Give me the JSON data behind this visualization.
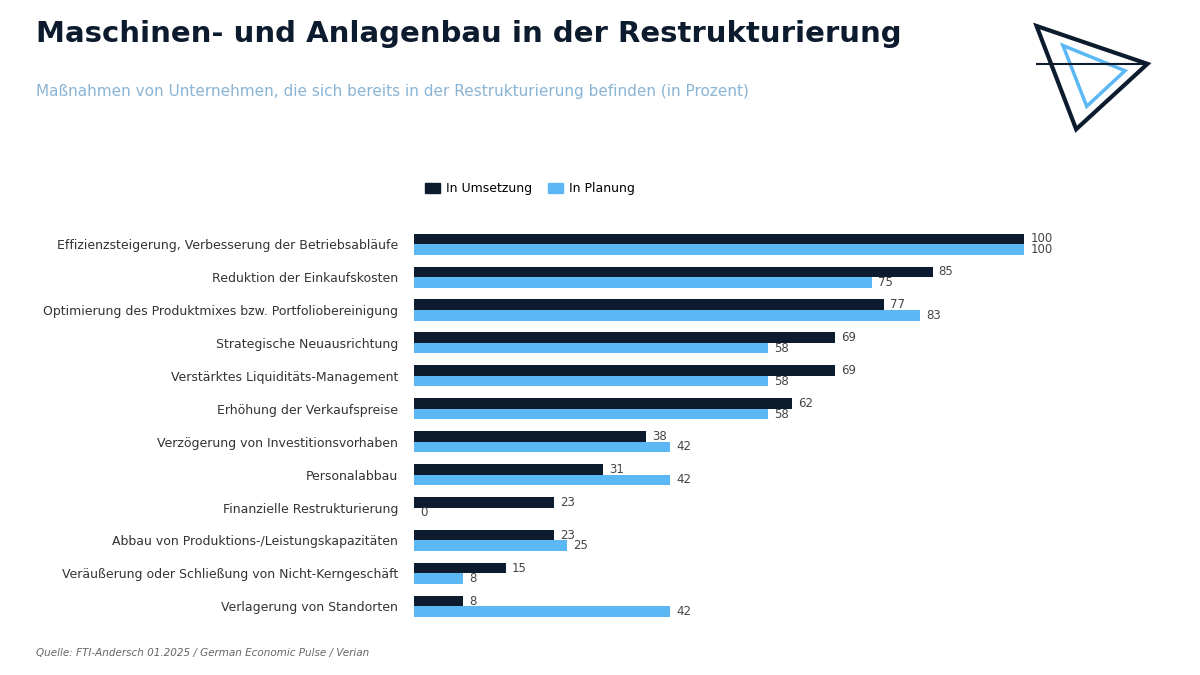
{
  "title": "Maschinen- und Anlagenbau in der Restrukturierung",
  "subtitle": "Maßnahmen von Unternehmen, die sich bereits in der Restrukturierung befinden (in Prozent)",
  "source": "Quelle: FTI-Andersch 01.2025 / German Economic Pulse / Verian",
  "categories": [
    "Effizienzsteigerung, Verbesserung der Betriebsabläufe",
    "Reduktion der Einkaufskosten",
    "Optimierung des Produktmixes bzw. Portfoliobereinigung",
    "Strategische Neuausrichtung",
    "Verstärktes Liquiditäts-Management",
    "Erhöhung der Verkaufspreise",
    "Verzögerung von Investitionsvorhaben",
    "Personalabbau",
    "Finanzielle Restrukturierung",
    "Abbau von Produktions-/Leistungskapazitäten",
    "Veräußerung oder Schließung von Nicht-Kerngeschäft",
    "Verlagerung von Standorten"
  ],
  "umsetzung": [
    100,
    85,
    77,
    69,
    69,
    62,
    38,
    31,
    23,
    23,
    15,
    8
  ],
  "planung": [
    100,
    75,
    83,
    58,
    58,
    58,
    42,
    42,
    0,
    25,
    8,
    42
  ],
  "color_umsetzung": "#0d1b2e",
  "color_planung": "#5bb8f5",
  "background_color": "#ffffff",
  "title_color": "#0d1b2e",
  "subtitle_color": "#8ab4d4",
  "label_color": "#444444",
  "source_color": "#666666",
  "legend_label_umsetzung": "In Umsetzung",
  "legend_label_planung": "In Planung",
  "bar_height": 0.32,
  "xlim": [
    0,
    118
  ]
}
